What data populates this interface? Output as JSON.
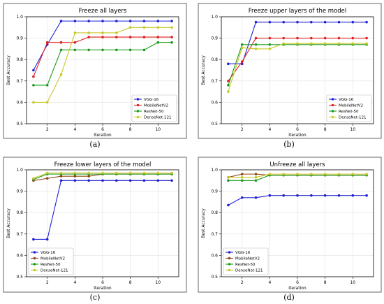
{
  "chart_data": [
    {
      "type": "line",
      "caption": "(a)",
      "title": "Freeze all layers",
      "xlabel": "Iteration",
      "ylabel": "Best Accuracy",
      "xlim": [
        0.5,
        11.5
      ],
      "ylim": [
        0.5,
        1.0
      ],
      "xticks": [
        2,
        4,
        6,
        8,
        10
      ],
      "yticks": [
        0.5,
        0.6,
        0.7,
        0.8,
        0.9,
        1.0
      ],
      "legend_position": "lower-right",
      "x": [
        1,
        2,
        3,
        4,
        5,
        6,
        7,
        8,
        9,
        10,
        11
      ],
      "series": [
        {
          "name": "VGG-16",
          "color": "#1f1fd6",
          "values": [
            0.75,
            0.87,
            0.98,
            0.98,
            0.98,
            0.98,
            0.98,
            0.98,
            0.98,
            0.98,
            0.98
          ]
        },
        {
          "name": "MobileNetV2",
          "color": "#e02020",
          "values": [
            0.72,
            0.88,
            0.88,
            0.88,
            0.905,
            0.905,
            0.905,
            0.905,
            0.905,
            0.905,
            0.905
          ]
        },
        {
          "name": "ResNet-50",
          "color": "#1a9a1a",
          "values": [
            0.68,
            0.68,
            0.845,
            0.845,
            0.845,
            0.845,
            0.845,
            0.845,
            0.845,
            0.88,
            0.88
          ]
        },
        {
          "name": "DenseNet-121",
          "color": "#c8c828",
          "values": [
            0.6,
            0.6,
            0.73,
            0.925,
            0.925,
            0.925,
            0.925,
            0.95,
            0.95,
            0.95,
            0.95
          ]
        }
      ]
    },
    {
      "type": "line",
      "caption": "(b)",
      "title": "Freeze upper layers of the model",
      "xlabel": "Iteration",
      "ylabel": "Best Accuracy",
      "xlim": [
        0.5,
        11.5
      ],
      "ylim": [
        0.5,
        1.0
      ],
      "xticks": [
        2,
        4,
        6,
        8,
        10
      ],
      "yticks": [
        0.5,
        0.6,
        0.7,
        0.8,
        0.9,
        1.0
      ],
      "legend_position": "lower-right",
      "x": [
        1,
        2,
        3,
        4,
        5,
        6,
        7,
        8,
        9,
        10,
        11
      ],
      "series": [
        {
          "name": "VGG-16",
          "color": "#1f1fd6",
          "values": [
            0.78,
            0.78,
            0.975,
            0.975,
            0.975,
            0.975,
            0.975,
            0.975,
            0.975,
            0.975,
            0.975
          ]
        },
        {
          "name": "MobileNetV2",
          "color": "#e02020",
          "values": [
            0.7,
            0.79,
            0.9,
            0.9,
            0.9,
            0.9,
            0.9,
            0.9,
            0.9,
            0.9,
            0.9
          ]
        },
        {
          "name": "ResNet-50",
          "color": "#1a9a1a",
          "values": [
            0.68,
            0.87,
            0.87,
            0.87,
            0.87,
            0.87,
            0.87,
            0.87,
            0.87,
            0.87,
            0.87
          ]
        },
        {
          "name": "DenseNet-121",
          "color": "#c8c828",
          "values": [
            0.65,
            0.855,
            0.85,
            0.85,
            0.875,
            0.875,
            0.875,
            0.875,
            0.875,
            0.875,
            0.875
          ]
        }
      ]
    },
    {
      "type": "line",
      "caption": "(c)",
      "title": "Freeze lower layers of the model",
      "xlabel": "Iteration",
      "ylabel": "Best Accuracy",
      "xlim": [
        0.5,
        11.5
      ],
      "ylim": [
        0.5,
        1.0
      ],
      "xticks": [
        2,
        4,
        6,
        8,
        10
      ],
      "yticks": [
        0.5,
        0.6,
        0.7,
        0.8,
        0.9,
        1.0
      ],
      "legend_position": "lower-left",
      "x": [
        1,
        2,
        3,
        4,
        5,
        6,
        7,
        8,
        9,
        10,
        11
      ],
      "series": [
        {
          "name": "VGG-16",
          "color": "#1f1fd6",
          "values": [
            0.675,
            0.675,
            0.95,
            0.95,
            0.95,
            0.95,
            0.95,
            0.95,
            0.95,
            0.95,
            0.95
          ]
        },
        {
          "name": "MobileNetV2",
          "color": "#8b4513",
          "values": [
            0.95,
            0.96,
            0.97,
            0.97,
            0.97,
            0.98,
            0.98,
            0.98,
            0.98,
            0.98,
            0.98
          ]
        },
        {
          "name": "ResNet-50",
          "color": "#1a9a1a",
          "values": [
            0.955,
            0.98,
            0.98,
            0.98,
            0.98,
            0.98,
            0.98,
            0.98,
            0.98,
            0.98,
            0.98
          ]
        },
        {
          "name": "DenseNet-121",
          "color": "#c8c828",
          "values": [
            0.96,
            0.985,
            0.985,
            0.985,
            0.985,
            0.985,
            0.985,
            0.985,
            0.985,
            0.985,
            0.985
          ]
        }
      ]
    },
    {
      "type": "line",
      "caption": "(d)",
      "title": "Unfreeze all layers",
      "xlabel": "Iteration",
      "ylabel": "Best Accuracy",
      "xlim": [
        0.5,
        11.5
      ],
      "ylim": [
        0.5,
        1.0
      ],
      "xticks": [
        2,
        4,
        6,
        8,
        10
      ],
      "yticks": [
        0.5,
        0.6,
        0.7,
        0.8,
        0.9,
        1.0
      ],
      "legend_position": "lower-left",
      "x": [
        1,
        2,
        3,
        4,
        5,
        6,
        7,
        8,
        9,
        10,
        11
      ],
      "series": [
        {
          "name": "VGG-16",
          "color": "#1f1fd6",
          "values": [
            0.835,
            0.87,
            0.87,
            0.88,
            0.88,
            0.88,
            0.88,
            0.88,
            0.88,
            0.88,
            0.88
          ]
        },
        {
          "name": "MobileNetV2",
          "color": "#8b4513",
          "values": [
            0.965,
            0.98,
            0.98,
            0.975,
            0.975,
            0.975,
            0.975,
            0.975,
            0.975,
            0.975,
            0.975
          ]
        },
        {
          "name": "ResNet-50",
          "color": "#1a9a1a",
          "values": [
            0.95,
            0.95,
            0.95,
            0.975,
            0.975,
            0.975,
            0.975,
            0.975,
            0.975,
            0.975,
            0.975
          ]
        },
        {
          "name": "DenseNet-121",
          "color": "#c8c828",
          "values": [
            0.965,
            0.965,
            0.965,
            0.98,
            0.98,
            0.98,
            0.98,
            0.98,
            0.98,
            0.98,
            0.98
          ]
        }
      ]
    }
  ]
}
